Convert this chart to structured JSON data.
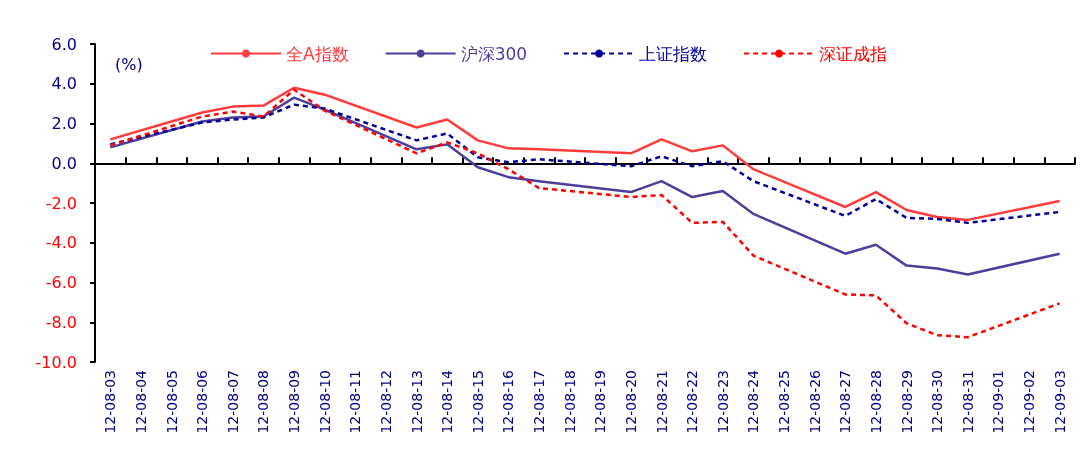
{
  "chart_data": {
    "type": "line",
    "ylabel": "(%)",
    "categories": [
      "12-08-03",
      "12-08-04",
      "12-08-05",
      "12-08-06",
      "12-08-07",
      "12-08-08",
      "12-08-09",
      "12-08-10",
      "12-08-11",
      "12-08-12",
      "12-08-13",
      "12-08-14",
      "12-08-15",
      "12-08-16",
      "12-08-17",
      "12-08-18",
      "12-08-19",
      "12-08-20",
      "12-08-21",
      "12-08-22",
      "12-08-23",
      "12-08-24",
      "12-08-25",
      "12-08-26",
      "12-08-27",
      "12-08-28",
      "12-08-29",
      "12-08-30",
      "12-08-31",
      "12-09-01",
      "12-09-02",
      "12-09-03"
    ],
    "series": [
      {
        "name": "全A指数",
        "color": "#ff3b3b",
        "line_style": "solid",
        "values": [
          1.2,
          null,
          null,
          2.55,
          2.85,
          2.9,
          3.8,
          3.45,
          null,
          null,
          1.8,
          2.2,
          1.15,
          0.75,
          0.7,
          null,
          null,
          0.5,
          1.2,
          0.6,
          0.9,
          -0.3,
          null,
          null,
          -2.2,
          -1.45,
          -2.35,
          -2.7,
          -2.85,
          null,
          null,
          -1.9
        ]
      },
      {
        "name": "沪深300",
        "color": "#4b3f9b",
        "line_style": "solid",
        "values": [
          0.8,
          null,
          null,
          2.1,
          2.3,
          2.35,
          3.3,
          2.7,
          null,
          null,
          0.7,
          0.95,
          -0.2,
          -0.7,
          -0.9,
          null,
          null,
          -1.45,
          -0.9,
          -1.7,
          -1.4,
          -2.55,
          null,
          null,
          -4.55,
          -4.1,
          -5.15,
          -5.3,
          -5.6,
          null,
          null,
          -4.55
        ]
      },
      {
        "name": "上证指数",
        "color": "#000099",
        "line_style": "dashed",
        "values": [
          0.95,
          null,
          null,
          2.05,
          2.2,
          2.3,
          2.95,
          2.75,
          null,
          null,
          1.15,
          1.5,
          0.3,
          0.05,
          0.2,
          null,
          null,
          -0.15,
          0.35,
          -0.15,
          0.1,
          -0.9,
          null,
          null,
          -2.65,
          -1.8,
          -2.75,
          -2.8,
          -3.0,
          null,
          null,
          -2.45
        ]
      },
      {
        "name": "深证成指",
        "color": "#ff0000",
        "line_style": "dashed",
        "values": [
          0.9,
          null,
          null,
          2.35,
          2.6,
          2.35,
          3.7,
          2.65,
          null,
          null,
          0.5,
          1.05,
          0.5,
          -0.3,
          -1.25,
          null,
          null,
          -1.7,
          -1.6,
          -3.0,
          -2.95,
          -4.65,
          null,
          null,
          -6.6,
          -6.65,
          -8.05,
          -8.65,
          -8.75,
          null,
          null,
          -7.05
        ]
      }
    ],
    "ylim": [
      -10,
      6
    ],
    "yticks": [
      {
        "value": -10,
        "label": "-10.0"
      },
      {
        "value": -8,
        "label": "-8.0"
      },
      {
        "value": -6,
        "label": "-6.0"
      },
      {
        "value": -4,
        "label": "-4.0"
      },
      {
        "value": -2,
        "label": "-2.0"
      },
      {
        "value": 0,
        "label": "0.0"
      },
      {
        "value": 2,
        "label": "2.0"
      },
      {
        "value": 4,
        "label": "4.0"
      },
      {
        "value": 6,
        "label": "6.0"
      }
    ],
    "legend": "top",
    "marker": "none"
  }
}
